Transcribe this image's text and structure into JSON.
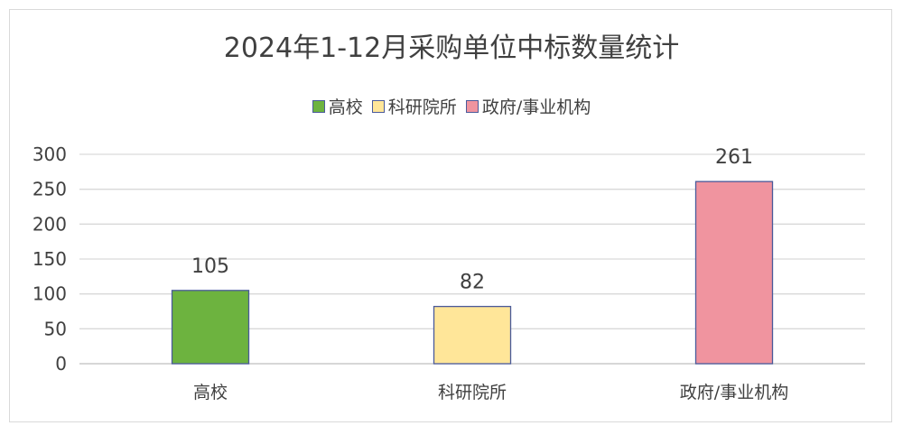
{
  "chart_data": {
    "type": "bar",
    "title": "2024年1-12月采购单位中标数量统计",
    "categories": [
      "高校",
      "科研院所",
      "政府/事业机构"
    ],
    "values": [
      105,
      82,
      261
    ],
    "colors": [
      "#6db33f",
      "#ffe699",
      "#f0949f"
    ],
    "bar_border_color": "#4a5a9a",
    "legend": [
      "高校",
      "科研院所",
      "政府/事业机构"
    ],
    "legend_position": "top",
    "ylim": [
      0,
      300
    ],
    "yticks": [
      0,
      50,
      100,
      150,
      200,
      250,
      300
    ],
    "grid": true,
    "data_labels": [
      "105",
      "82",
      "261"
    ]
  }
}
